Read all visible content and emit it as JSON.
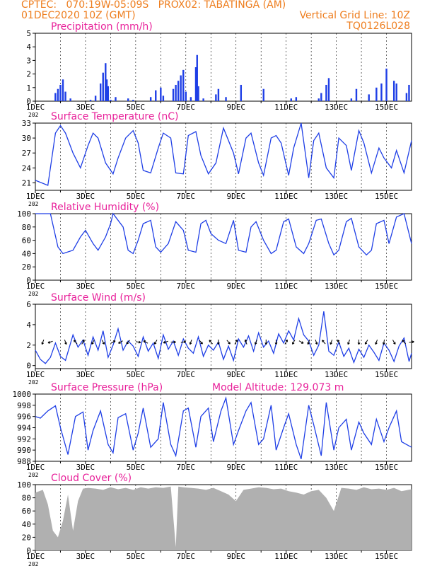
{
  "header": {
    "left_line1": "CPTEC:   070:19W-05:09S   PROX02: TABATINGA (AM)",
    "left_line2": "01DEC2020 10Z (GMT)",
    "right_line2": "Vertical Grid Line: 10Z",
    "right_line3": "TQ0126L028"
  },
  "x_ticks": [
    "1DEC",
    "3DEC",
    "5DEC",
    "7DEC",
    "9DEC",
    "11DEC",
    "13DEC",
    "15DEC"
  ],
  "x_tick_fragment": "202",
  "colors": {
    "header": "#ee7d1d",
    "title": "#e8219a",
    "line": "#1f3fe6",
    "cloud": "#b0b0b0"
  },
  "chart_data": [
    {
      "type": "bar",
      "title": "Precipitation (mm/h)",
      "ylim": [
        0,
        5
      ],
      "yticks": [
        "0",
        "1",
        "2",
        "3",
        "4",
        "5"
      ],
      "x": [
        1.8,
        1.9,
        2.0,
        2.1,
        2.2,
        2.4,
        3.2,
        3.4,
        3.6,
        3.7,
        3.8,
        3.85,
        3.9,
        4.0,
        4.2,
        4.7,
        4.9,
        5.6,
        5.8,
        6.0,
        6.1,
        6.5,
        6.6,
        6.7,
        6.8,
        6.9,
        7.0,
        7.2,
        7.4,
        7.45,
        7.5,
        7.7,
        8.2,
        8.3,
        8.6,
        9.2,
        10.1,
        11.2,
        11.4,
        12.3,
        12.4,
        12.6,
        12.7,
        13.6,
        13.8,
        14.3,
        14.6,
        14.8,
        15.0,
        15.3,
        15.4,
        15.8,
        15.9
      ],
      "values": [
        0.6,
        0.9,
        1.2,
        1.6,
        0.7,
        0.2,
        0.1,
        0.4,
        1.3,
        2.1,
        2.8,
        1.6,
        1.1,
        0.1,
        0.3,
        0.2,
        0.1,
        0.3,
        0.8,
        1.0,
        0.4,
        0.9,
        1.2,
        1.5,
        1.9,
        2.3,
        0.7,
        0.3,
        2.5,
        3.4,
        1.1,
        0.2,
        0.5,
        0.9,
        0.3,
        1.2,
        0.9,
        0.2,
        0.3,
        0.2,
        0.6,
        1.2,
        1.7,
        0.2,
        0.9,
        0.5,
        1.0,
        1.3,
        2.4,
        1.5,
        1.3,
        0.6,
        1.2
      ],
      "xlim": [
        1,
        16
      ]
    },
    {
      "type": "line",
      "title": "Surface Temperature (nC)",
      "ylim": [
        19.5,
        33
      ],
      "yticks": [
        "21",
        "24",
        "27",
        "30",
        "33"
      ],
      "x": [
        1.0,
        1.5,
        1.6,
        1.8,
        2.0,
        2.2,
        2.5,
        2.8,
        3.1,
        3.3,
        3.5,
        3.8,
        4.1,
        4.3,
        4.6,
        4.9,
        5.1,
        5.3,
        5.6,
        5.9,
        6.1,
        6.4,
        6.6,
        6.9,
        7.1,
        7.4,
        7.6,
        7.9,
        8.2,
        8.5,
        8.9,
        9.1,
        9.4,
        9.6,
        9.9,
        10.1,
        10.4,
        10.6,
        10.8,
        11.1,
        11.3,
        11.6,
        11.9,
        12.1,
        12.3,
        12.6,
        12.9,
        13.1,
        13.4,
        13.6,
        13.9,
        14.1,
        14.4,
        14.7,
        14.9,
        15.2,
        15.4,
        15.7,
        16.0
      ],
      "values": [
        21.5,
        20.5,
        24.0,
        31.0,
        32.5,
        31.0,
        27.0,
        24.0,
        28.5,
        31.0,
        30.0,
        25.0,
        22.8,
        26.0,
        30.0,
        31.5,
        29.0,
        23.5,
        23.0,
        28.0,
        31.0,
        30.0,
        23.0,
        22.8,
        30.5,
        31.3,
        26.5,
        22.8,
        25.0,
        32.0,
        27.0,
        22.8,
        30.0,
        31.0,
        25.0,
        22.5,
        30.0,
        30.5,
        29.0,
        22.5,
        28.0,
        33.0,
        22.0,
        29.5,
        31.0,
        24.0,
        22.0,
        30.0,
        28.5,
        23.5,
        31.5,
        29.0,
        23.0,
        28.0,
        26.0,
        24.0,
        27.5,
        23.0,
        29.5
      ],
      "xlim": [
        1,
        16
      ]
    },
    {
      "type": "line",
      "title": "Relative Humidity (%)",
      "ylim": [
        0,
        100
      ],
      "yticks": [
        "0",
        "20",
        "40",
        "60",
        "80",
        "100"
      ],
      "x": [
        1.0,
        1.6,
        1.9,
        2.1,
        2.5,
        2.8,
        3.0,
        3.3,
        3.5,
        3.8,
        4.0,
        4.1,
        4.5,
        4.7,
        4.9,
        5.1,
        5.3,
        5.6,
        5.8,
        6.0,
        6.3,
        6.6,
        6.9,
        7.1,
        7.4,
        7.6,
        7.8,
        8.0,
        8.3,
        8.6,
        8.9,
        9.1,
        9.4,
        9.6,
        9.8,
        10.1,
        10.4,
        10.6,
        10.9,
        11.1,
        11.4,
        11.7,
        11.9,
        12.2,
        12.4,
        12.7,
        12.9,
        13.1,
        13.4,
        13.6,
        13.9,
        14.2,
        14.4,
        14.6,
        14.9,
        15.1,
        15.4,
        15.7,
        16.0
      ],
      "values": [
        100,
        100,
        50,
        40,
        45,
        65,
        75,
        55,
        45,
        65,
        85,
        100,
        80,
        45,
        40,
        60,
        85,
        90,
        50,
        42,
        55,
        88,
        75,
        45,
        42,
        85,
        90,
        70,
        60,
        55,
        90,
        45,
        42,
        80,
        88,
        60,
        40,
        45,
        88,
        92,
        50,
        40,
        55,
        90,
        92,
        55,
        38,
        45,
        88,
        93,
        50,
        38,
        45,
        85,
        90,
        55,
        95,
        100,
        55
      ],
      "xlim": [
        1,
        16
      ]
    },
    {
      "type": "line",
      "title": "Surface Wind (m/s)",
      "ylim": [
        -0.3,
        6
      ],
      "yticks": [
        "0",
        "2",
        "4",
        "6"
      ],
      "x": [
        1.0,
        1.2,
        1.4,
        1.6,
        1.8,
        2.0,
        2.2,
        2.5,
        2.7,
        2.9,
        3.1,
        3.3,
        3.5,
        3.7,
        3.9,
        4.1,
        4.3,
        4.5,
        4.7,
        4.9,
        5.1,
        5.3,
        5.5,
        5.7,
        5.9,
        6.1,
        6.3,
        6.5,
        6.7,
        6.9,
        7.1,
        7.3,
        7.5,
        7.7,
        7.9,
        8.1,
        8.3,
        8.5,
        8.7,
        8.9,
        9.1,
        9.3,
        9.5,
        9.7,
        9.9,
        10.1,
        10.3,
        10.5,
        10.7,
        10.9,
        11.1,
        11.3,
        11.5,
        11.7,
        11.9,
        12.1,
        12.3,
        12.5,
        12.7,
        12.9,
        13.1,
        13.3,
        13.5,
        13.7,
        13.9,
        14.1,
        14.3,
        14.5,
        14.7,
        14.9,
        15.1,
        15.3,
        15.5,
        15.7,
        15.9,
        16.0
      ],
      "values": [
        1.5,
        0.6,
        0.2,
        0.8,
        2.2,
        0.9,
        0.5,
        3.0,
        1.8,
        2.5,
        1.0,
        2.8,
        1.5,
        3.4,
        0.8,
        2.0,
        3.6,
        1.5,
        2.4,
        1.9,
        0.9,
        2.8,
        1.4,
        2.2,
        0.7,
        3.0,
        1.6,
        2.4,
        1.0,
        2.6,
        1.7,
        1.2,
        2.8,
        0.9,
        2.0,
        1.5,
        2.3,
        0.6,
        1.9,
        0.5,
        2.6,
        1.8,
        2.9,
        1.4,
        3.2,
        1.8,
        2.4,
        1.2,
        3.1,
        2.2,
        3.4,
        2.5,
        4.6,
        3.0,
        2.4,
        1.0,
        2.0,
        5.3,
        1.4,
        1.0,
        2.3,
        0.9,
        1.7,
        0.3,
        1.6,
        0.8,
        2.0,
        1.3,
        0.5,
        2.2,
        1.5,
        0.4,
        1.9,
        2.7,
        0.4,
        1.2
      ],
      "arrows_x": [
        1.3,
        1.6,
        2.2,
        2.6,
        2.9,
        3.3,
        3.7,
        4.1,
        4.4,
        4.7,
        5.1,
        5.4,
        5.8,
        6.2,
        6.5,
        6.9,
        7.2,
        7.6,
        8.0,
        8.3,
        8.7,
        9.0,
        9.4,
        9.8,
        10.2,
        10.6,
        11.0,
        11.3,
        11.6,
        11.9,
        12.2,
        12.5,
        12.8,
        13.1,
        13.5,
        13.9,
        14.2,
        14.6,
        14.9,
        15.3,
        15.7,
        16.0
      ],
      "arrows_dir": [
        200,
        250,
        160,
        320,
        30,
        210,
        150,
        60,
        240,
        220,
        100,
        300,
        210,
        250,
        90,
        80,
        200,
        140,
        320,
        180,
        140,
        30,
        340,
        200,
        180,
        180,
        30,
        210,
        120,
        200,
        160,
        320,
        200,
        330,
        200,
        180,
        210,
        200,
        190,
        150,
        320,
        80
      ],
      "xlim": [
        1,
        16
      ]
    },
    {
      "type": "line",
      "title": "Surface Pressure (hPa)",
      "annotation": "Model Altitude: 129.073 m",
      "ylim": [
        988,
        1000
      ],
      "yticks": [
        "988",
        "990",
        "992",
        "994",
        "996",
        "998",
        "1000"
      ],
      "x": [
        1.0,
        1.2,
        1.5,
        1.8,
        2.0,
        2.3,
        2.6,
        2.9,
        3.1,
        3.3,
        3.6,
        3.9,
        4.1,
        4.3,
        4.6,
        4.9,
        5.1,
        5.3,
        5.6,
        5.9,
        6.1,
        6.4,
        6.6,
        6.9,
        7.1,
        7.4,
        7.6,
        7.9,
        8.1,
        8.4,
        8.6,
        8.9,
        9.1,
        9.4,
        9.6,
        9.9,
        10.1,
        10.4,
        10.6,
        10.9,
        11.1,
        11.4,
        11.6,
        11.9,
        12.1,
        12.4,
        12.6,
        12.9,
        13.1,
        13.4,
        13.6,
        13.9,
        14.1,
        14.4,
        14.6,
        14.9,
        15.1,
        15.4,
        15.6,
        16.0
      ],
      "values": [
        996.0,
        995.7,
        997.0,
        997.9,
        994.0,
        989.2,
        996.0,
        996.8,
        990.0,
        993.5,
        997.0,
        991.0,
        989.5,
        995.8,
        996.5,
        990.0,
        993.0,
        997.5,
        990.5,
        992.0,
        998.5,
        991.0,
        989.0,
        997.0,
        997.5,
        990.5,
        996.0,
        997.5,
        991.5,
        997.0,
        999.3,
        991.0,
        993.5,
        997.0,
        998.5,
        991.0,
        992.0,
        998.0,
        990.0,
        994.0,
        996.5,
        991.0,
        988.4,
        998.0,
        994.5,
        989.0,
        998.5,
        990.0,
        994.0,
        995.5,
        990.0,
        995.0,
        993.0,
        991.0,
        995.5,
        991.5,
        994.0,
        997.0,
        991.5,
        990.5
      ],
      "xlim": [
        1,
        16
      ]
    },
    {
      "type": "area",
      "title": "Cloud Cover (%)",
      "ylim": [
        0,
        100
      ],
      "yticks": [
        "0",
        "20",
        "40",
        "60",
        "80",
        "100"
      ],
      "x": [
        1.0,
        1.3,
        1.5,
        1.7,
        1.9,
        2.1,
        2.3,
        2.5,
        2.7,
        2.9,
        3.1,
        3.4,
        3.7,
        4.0,
        4.3,
        4.6,
        4.9,
        5.2,
        5.5,
        5.8,
        6.1,
        6.4,
        6.6,
        6.7,
        6.9,
        7.2,
        7.5,
        7.8,
        8.1,
        8.4,
        8.7,
        9.0,
        9.3,
        9.6,
        9.9,
        10.2,
        10.5,
        10.8,
        11.1,
        11.4,
        11.7,
        12.0,
        12.3,
        12.6,
        12.9,
        13.2,
        13.5,
        13.8,
        14.1,
        14.4,
        14.7,
        15.0,
        15.3,
        15.6,
        16.0
      ],
      "values": [
        88,
        92,
        70,
        30,
        20,
        45,
        85,
        30,
        75,
        94,
        95,
        94,
        92,
        96,
        93,
        95,
        92,
        96,
        94,
        96,
        95,
        97,
        5,
        97,
        96,
        95,
        94,
        92,
        95,
        90,
        85,
        75,
        92,
        94,
        96,
        95,
        93,
        94,
        90,
        88,
        85,
        90,
        92,
        80,
        60,
        95,
        94,
        92,
        96,
        93,
        94,
        92,
        95,
        90,
        93
      ],
      "xlim": [
        1,
        16
      ]
    }
  ]
}
